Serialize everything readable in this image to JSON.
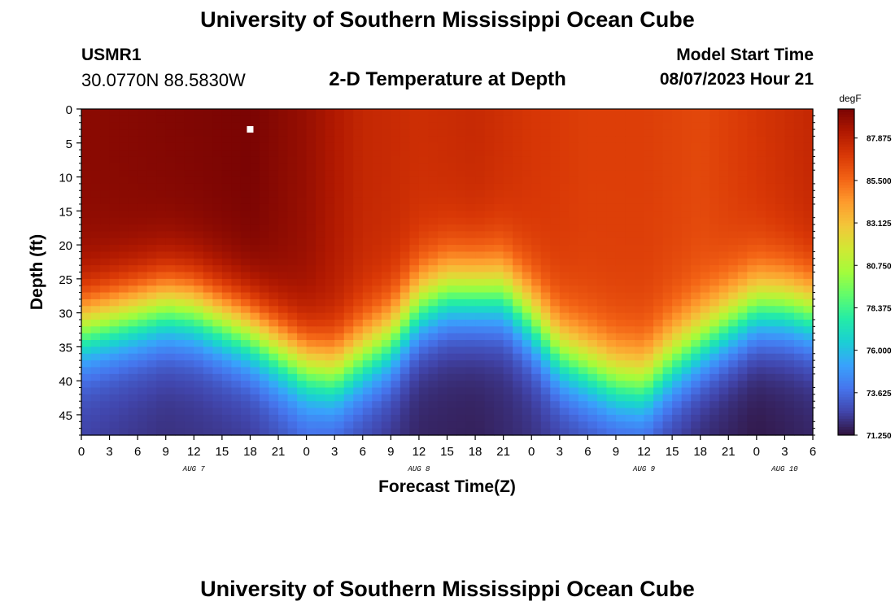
{
  "header": {
    "title": "University of Southern Mississippi Ocean Cube",
    "station": "USMR1",
    "coordinates": "30.0770N  88.5830W",
    "model_start_label": "Model Start Time",
    "model_start_value": "08/07/2023 Hour 21"
  },
  "footer": {
    "title": "University of Southern Mississippi Ocean Cube"
  },
  "colors": {
    "scale": [
      "#30123b",
      "#4145ab",
      "#4675ed",
      "#39a2fc",
      "#1bcfd4",
      "#24eca6",
      "#61fc6c",
      "#a4fc3b",
      "#d1e834",
      "#f3c63a",
      "#fe9b2d",
      "#f36315",
      "#d93806",
      "#b11901",
      "#7a0403"
    ],
    "marker": "#ffffff"
  },
  "chart_data": {
    "type": "heatmap",
    "title": "2-D Temperature at Depth",
    "xlabel": "Forecast Time(Z)",
    "ylabel": "Depth (ft)",
    "colorbar_unit": "degF",
    "colorbar_ticks": [
      "87.875",
      "85.500",
      "83.125",
      "80.750",
      "78.375",
      "76.000",
      "73.625",
      "71.250"
    ],
    "colorbar_range": [
      71.25,
      89.5
    ],
    "x_range_hours": [
      0,
      78
    ],
    "x_tick_labels": [
      "0",
      "3",
      "6",
      "9",
      "12",
      "15",
      "18",
      "21",
      "0",
      "3",
      "6",
      "9",
      "12",
      "15",
      "18",
      "21",
      "0",
      "3",
      "6",
      "9",
      "12",
      "15",
      "18",
      "21",
      "0",
      "3",
      "6"
    ],
    "date_labels": [
      {
        "label": "AUG 7",
        "hour": 12
      },
      {
        "label": "AUG 8",
        "hour": 36
      },
      {
        "label": "AUG 9",
        "hour": 60
      },
      {
        "label": "AUG 10",
        "hour": 75
      }
    ],
    "y_range": [
      0,
      48
    ],
    "y_ticks": [
      0,
      5,
      10,
      15,
      20,
      25,
      30,
      35,
      40,
      45
    ],
    "marker": {
      "hour": 18,
      "depth": 3
    },
    "thermocline": {
      "hours": [
        0,
        9,
        12,
        18,
        24,
        27,
        33,
        36,
        39,
        45,
        48,
        51,
        57,
        60,
        63,
        69,
        72,
        75,
        78
      ],
      "center_depth_ft": [
        32,
        29,
        29.5,
        33,
        38,
        39,
        34,
        29,
        27,
        27,
        31,
        36,
        40,
        40.5,
        37,
        31.5,
        29,
        29,
        30
      ]
    },
    "surface_temp": {
      "hours": [
        0,
        9,
        18,
        24,
        30,
        36,
        42,
        48,
        54,
        60,
        66,
        72,
        78
      ],
      "temp_f": [
        89.1,
        89.3,
        89.5,
        88.8,
        87.6,
        87.3,
        87.5,
        87.0,
        86.7,
        86.7,
        86.4,
        87.0,
        87.6
      ]
    },
    "bottom_temp": {
      "hours": [
        0,
        9,
        18,
        24,
        30,
        36,
        42,
        48,
        54,
        60,
        66,
        72,
        78
      ],
      "temp_f": [
        72.4,
        72.0,
        72.2,
        73.0,
        72.4,
        71.7,
        71.6,
        72.0,
        72.5,
        72.6,
        71.8,
        71.4,
        71.7
      ]
    }
  }
}
